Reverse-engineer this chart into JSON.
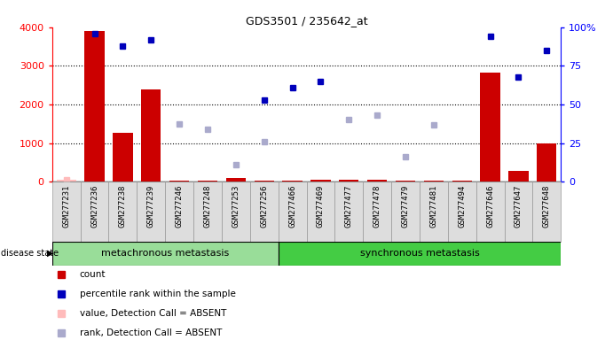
{
  "title": "GDS3501 / 235642_at",
  "samples": [
    "GSM277231",
    "GSM277236",
    "GSM277238",
    "GSM277239",
    "GSM277246",
    "GSM277248",
    "GSM277253",
    "GSM277256",
    "GSM277466",
    "GSM277469",
    "GSM277477",
    "GSM277478",
    "GSM277479",
    "GSM277481",
    "GSM277494",
    "GSM277646",
    "GSM277647",
    "GSM277648"
  ],
  "count_values": [
    50,
    3900,
    1280,
    2390,
    30,
    30,
    100,
    30,
    30,
    50,
    60,
    60,
    30,
    30,
    30,
    2830,
    280,
    1000
  ],
  "count_absent": [
    true,
    false,
    false,
    false,
    false,
    false,
    false,
    false,
    false,
    false,
    false,
    false,
    false,
    false,
    false,
    false,
    false,
    false
  ],
  "percentile_values": [
    null,
    96,
    88,
    92,
    null,
    null,
    null,
    53,
    61,
    65,
    null,
    null,
    null,
    null,
    null,
    94,
    68,
    85
  ],
  "rank_absent_values": [
    50,
    null,
    null,
    null,
    1500,
    1370,
    450,
    1050,
    null,
    null,
    1620,
    1720,
    640,
    1480,
    null,
    null,
    null,
    null
  ],
  "value_absent_values": [
    50,
    null,
    null,
    null,
    null,
    null,
    null,
    null,
    null,
    null,
    null,
    null,
    null,
    null,
    null,
    null,
    null,
    null
  ],
  "groups": [
    {
      "label": "metachronous metastasis",
      "start": 0,
      "end": 8
    },
    {
      "label": "synchronous metastasis",
      "start": 8,
      "end": 18
    }
  ],
  "ylim_left": [
    0,
    4000
  ],
  "ylim_right": [
    0,
    100
  ],
  "yticks_left": [
    0,
    1000,
    2000,
    3000,
    4000
  ],
  "yticks_right": [
    0,
    25,
    50,
    75,
    100
  ],
  "ytick_labels_right": [
    "0",
    "25",
    "50",
    "75",
    "100%"
  ],
  "bar_color": "#cc0000",
  "bar_absent_color": "#ffbbbb",
  "dot_color": "#0000bb",
  "dot_absent_color": "#aaaacc",
  "group_colors": [
    "#99dd99",
    "#44cc44"
  ],
  "group_text_color": "black",
  "legend_items": [
    {
      "label": "count",
      "color": "#cc0000",
      "marker": "s"
    },
    {
      "label": "percentile rank within the sample",
      "color": "#0000bb",
      "marker": "s"
    },
    {
      "label": "value, Detection Call = ABSENT",
      "color": "#ffbbbb",
      "marker": "s"
    },
    {
      "label": "rank, Detection Call = ABSENT",
      "color": "#aaaacc",
      "marker": "s"
    }
  ],
  "dotted_grid": [
    1000,
    2000,
    3000
  ]
}
